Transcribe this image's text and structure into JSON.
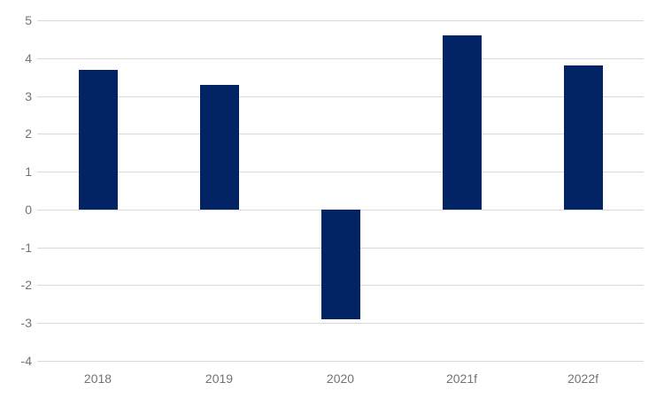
{
  "chart_data": {
    "type": "bar",
    "categories": [
      "2018",
      "2019",
      "2020",
      "2021f",
      "2022f"
    ],
    "values": [
      3.7,
      3.3,
      -2.9,
      4.6,
      3.8
    ],
    "ylim": [
      -4,
      5
    ],
    "ytick_step": 1,
    "ytick_labels": [
      "5",
      "4",
      "3",
      "2",
      "1",
      "0",
      "-1",
      "-2",
      "-3",
      "-4"
    ],
    "grid": true,
    "legend": "none",
    "colors": {
      "bar": "#022464",
      "gridline": "#d9d9d9",
      "tick_label": "#737373",
      "background": "#ffffff"
    }
  }
}
